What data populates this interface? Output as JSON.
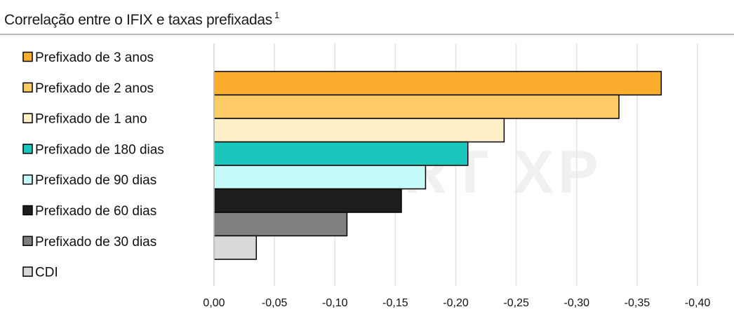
{
  "title": "Correlação entre o IFIX e taxas prefixadas",
  "title_superscript": "1",
  "chart_data": {
    "type": "bar",
    "orientation": "horizontal",
    "title": "Correlação entre o IFIX e taxas prefixadas",
    "categories": [
      "Prefixado de 3 anos",
      "Prefixado de 2 anos",
      "Prefixado de 1 ano",
      "Prefixado de 180 dias",
      "Prefixado de 90 dias",
      "Prefixado de 60 dias",
      "Prefixado de 30 dias",
      "CDI"
    ],
    "values": [
      -0.37,
      -0.335,
      -0.24,
      -0.21,
      -0.175,
      -0.155,
      -0.11,
      -0.035
    ],
    "colors": [
      "#FBAE2D",
      "#FDCB66",
      "#FEEFC9",
      "#1BC7BC",
      "#C5FBF8",
      "#1E1E1E",
      "#7F7F7F",
      "#D9D9D9"
    ],
    "xlim": [
      0.0,
      -0.4
    ],
    "xticks": [
      "0,00",
      "-0,05",
      "-0,10",
      "-0,15",
      "-0,20",
      "-0,25",
      "-0,30",
      "-0,35",
      "-0,40"
    ],
    "tick_values": [
      0,
      -0.05,
      -0.1,
      -0.15,
      -0.2,
      -0.25,
      -0.3,
      -0.35,
      -0.4
    ],
    "legend_position": "left",
    "grid": "vertical",
    "watermark": "EXPERT XP"
  }
}
